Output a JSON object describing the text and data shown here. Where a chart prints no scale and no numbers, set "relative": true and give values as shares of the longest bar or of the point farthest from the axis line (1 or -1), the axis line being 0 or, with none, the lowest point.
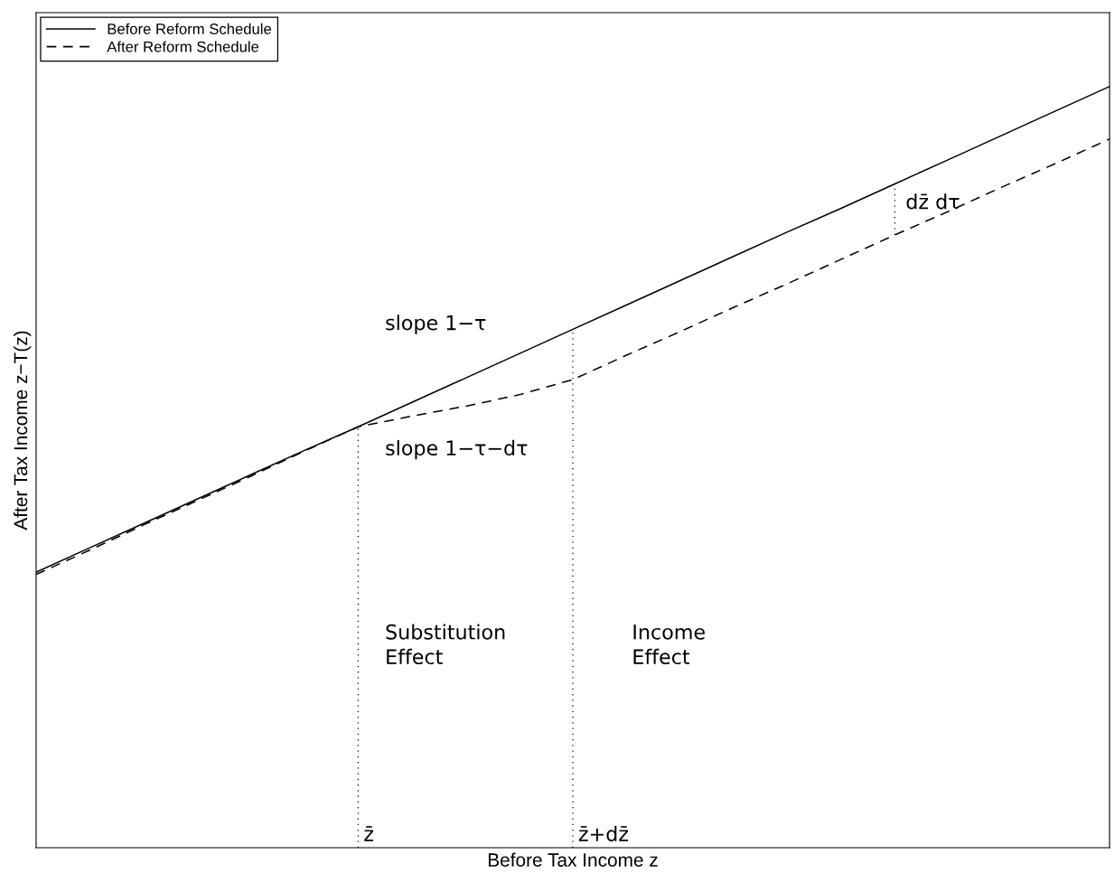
{
  "chart_data": {
    "type": "line",
    "relative": true,
    "xlabel": "Before Tax Income z",
    "ylabel": "After Tax Income z−T(z)",
    "categories": [
      null,
      null,
      null,
      null,
      null,
      null,
      null,
      null,
      null,
      null,
      null,
      null,
      null,
      null,
      null,
      null,
      null,
      null,
      null,
      null,
      null
    ],
    "series": [
      {
        "name": "Before Reform Schedule",
        "color": "#000000",
        "line_style": "solid",
        "values": [
          0.362,
          0.394,
          0.426,
          0.458,
          0.49,
          0.522,
          0.553,
          0.585,
          0.617,
          0.649,
          0.681,
          0.713,
          0.745,
          0.777,
          0.809,
          0.84,
          0.872,
          0.904,
          0.936,
          0.968,
          1.0
        ]
      },
      {
        "name": "After Reform Schedule",
        "color": "#000000",
        "line_style": "dashed",
        "values": [
          0.359,
          0.391,
          0.424,
          0.456,
          0.488,
          0.521,
          0.553,
          0.567,
          0.58,
          0.595,
          0.615,
          0.647,
          0.678,
          0.71,
          0.741,
          0.773,
          0.805,
          0.836,
          0.868,
          0.899,
          0.931
        ]
      }
    ],
    "annotations": [
      "slope 1−τ",
      "slope 1−τ−dτ",
      "Substitution\nEffect",
      "Income\nEffect",
      "dz̄ dτ",
      "z̄",
      "z̄+dz̄"
    ],
    "legend": "top left",
    "tick_labels": false,
    "marker": "none"
  }
}
